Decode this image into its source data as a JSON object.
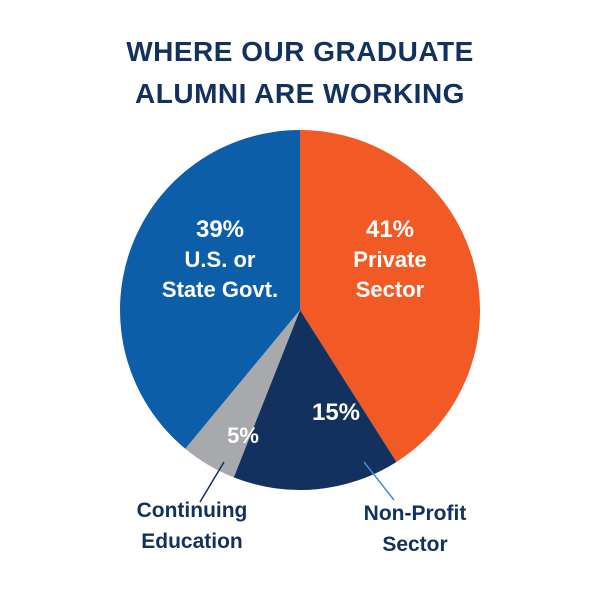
{
  "chart_data": {
    "type": "pie",
    "title": "WHERE OUR GRADUATE ALUMNI ARE WORKING",
    "title_lines": [
      "WHERE OUR GRADUATE",
      "ALUMNI ARE WORKING"
    ],
    "slices": [
      {
        "key": "private",
        "percent_label": "41%",
        "label_lines": [
          "Private",
          "Sector"
        ],
        "value": 41,
        "color": "#f15a24",
        "text_color": "#ffffff",
        "label_placement": "inside"
      },
      {
        "key": "nonprofit",
        "percent_label": "15%",
        "label_lines": [
          "Non-Profit",
          "Sector"
        ],
        "value": 15,
        "color": "#12315f",
        "text_color": "#ffffff",
        "label_placement": "outside"
      },
      {
        "key": "continuing",
        "percent_label": "5%",
        "label_lines": [
          "Continuing",
          "Education"
        ],
        "value": 5,
        "color": "#a7a9ac",
        "text_color": "#ffffff",
        "label_placement": "outside"
      },
      {
        "key": "govt",
        "percent_label": "39%",
        "label_lines": [
          "U.S. or",
          "State Govt."
        ],
        "value": 39,
        "color": "#0d5ea8",
        "text_color": "#ffffff",
        "label_placement": "inside"
      }
    ],
    "start_angle": "12 o'clock",
    "direction": "clockwise",
    "title_color": "#12315f",
    "outside_label_color": "#12315f"
  }
}
